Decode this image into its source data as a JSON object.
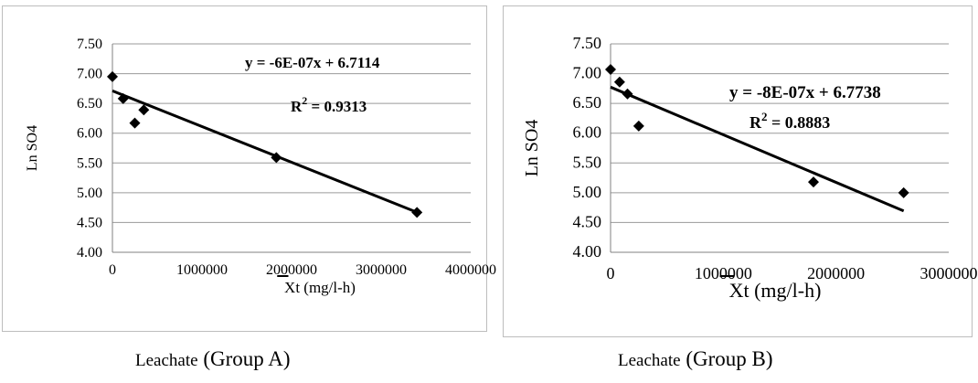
{
  "chart_data": [
    {
      "type": "scatter",
      "caption_prefix": "Leachate",
      "caption_group": "(Group A)",
      "xlabel": "Xt (mg/l-h)",
      "ylabel": "Ln SO4",
      "xlim": [
        0,
        4000000
      ],
      "ylim": [
        4.0,
        7.5
      ],
      "x_ticks": [
        0,
        1000000,
        2000000,
        3000000,
        4000000
      ],
      "x_tick_labels": [
        "0",
        "1000000",
        "2000000",
        "3000000",
        "4000000"
      ],
      "y_ticks": [
        4.0,
        4.5,
        5.0,
        5.5,
        6.0,
        6.5,
        7.0,
        7.5
      ],
      "y_tick_labels": [
        "4.00",
        "4.50",
        "5.00",
        "5.50",
        "6.00",
        "6.50",
        "7.00",
        "7.50"
      ],
      "grid": true,
      "equation": "y = -6E-07x + 6.7114",
      "r2_prefix": "R",
      "r2_exp": "2",
      "r2_value": " = 0.9313",
      "series": [
        {
          "points": [
            [
              0,
              6.95
            ],
            [
              120000,
              6.58
            ],
            [
              250000,
              6.17
            ],
            [
              350000,
              6.39
            ],
            [
              1830000,
              5.59
            ],
            [
              3400000,
              4.67
            ]
          ]
        }
      ],
      "trendline": {
        "slope": -6e-07,
        "intercept": 6.7114,
        "x_range": [
          0,
          3400000
        ]
      },
      "marker_color": "#000000"
    },
    {
      "type": "scatter",
      "caption_prefix": "Leachate",
      "caption_group": "(Group B)",
      "xlabel": "Xt (mg/l-h)",
      "ylabel": "Ln SO4",
      "xlim": [
        0,
        3000000
      ],
      "ylim": [
        4.0,
        7.5
      ],
      "x_ticks": [
        0,
        1000000,
        2000000,
        3000000
      ],
      "x_tick_labels": [
        "0",
        "1000000",
        "2000000",
        "3000000"
      ],
      "y_ticks": [
        4.0,
        4.5,
        5.0,
        5.5,
        6.0,
        6.5,
        7.0,
        7.5
      ],
      "y_tick_labels": [
        "4.00",
        "4.50",
        "5.00",
        "5.50",
        "6.00",
        "6.50",
        "7.00",
        "7.50"
      ],
      "grid": true,
      "equation": "y = -8E-07x + 6.7738",
      "r2_prefix": "R",
      "r2_exp": "2",
      "r2_value": " = 0.8883",
      "series": [
        {
          "points": [
            [
              0,
              7.07
            ],
            [
              80000,
              6.86
            ],
            [
              150000,
              6.66
            ],
            [
              250000,
              6.12
            ],
            [
              1800000,
              5.18
            ],
            [
              2600000,
              5.0
            ]
          ]
        }
      ],
      "trendline": {
        "slope": -8e-07,
        "intercept": 6.7738,
        "x_range": [
          0,
          2600000
        ]
      },
      "marker_color": "#000000"
    }
  ]
}
